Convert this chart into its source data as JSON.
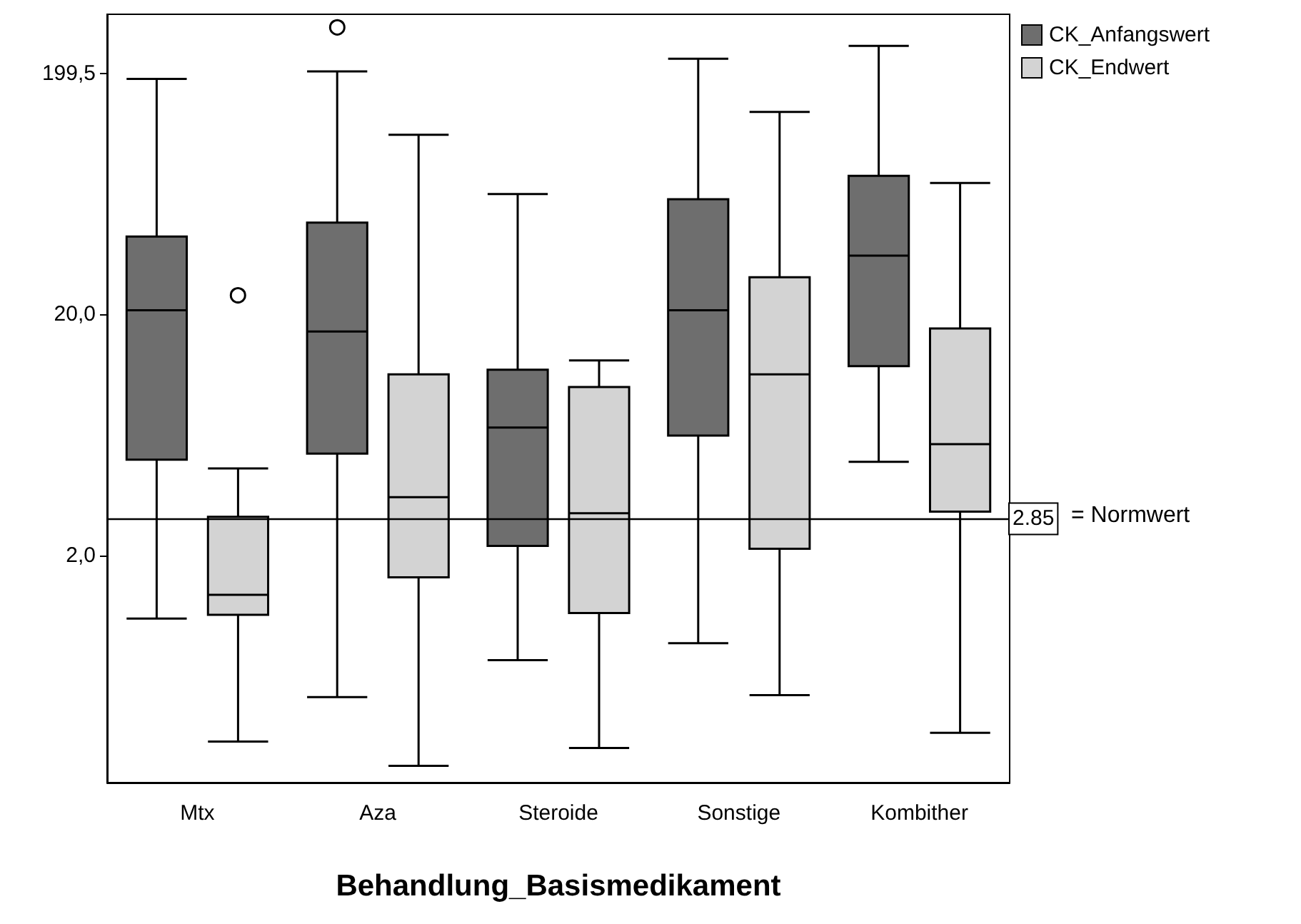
{
  "chart_data": {
    "type": "box",
    "xlabel": "Behandlung_Basismedikament",
    "categories": [
      "Mtx",
      "Aza",
      "Steroide",
      "Sonstige",
      "Kombither"
    ],
    "series": [
      {
        "name": "CK_Anfangswert",
        "color": "#6e6e6e",
        "boxes": [
          {
            "low": 1.1,
            "q1": 5.0,
            "median": 20.8,
            "q3": 42,
            "high": 189
          },
          {
            "low": 0.52,
            "q1": 5.3,
            "median": 17,
            "q3": 48,
            "high": 203,
            "outliers": [
              309
            ]
          },
          {
            "low": 0.74,
            "q1": 2.2,
            "median": 6.8,
            "q3": 11.8,
            "high": 63
          },
          {
            "low": 0.87,
            "q1": 6.3,
            "median": 20.8,
            "q3": 60,
            "high": 229
          },
          {
            "low": 4.9,
            "q1": 12.2,
            "median": 35,
            "q3": 75,
            "high": 259
          }
        ]
      },
      {
        "name": "CK_Endwert",
        "color": "#d3d3d3",
        "boxes": [
          {
            "low": 0.34,
            "q1": 1.14,
            "median": 1.38,
            "q3": 2.9,
            "high": 4.6,
            "outliers": [
              24
            ]
          },
          {
            "low": 0.27,
            "q1": 1.63,
            "median": 3.5,
            "q3": 11.3,
            "high": 111
          },
          {
            "low": 0.32,
            "q1": 1.16,
            "median": 3.0,
            "q3": 10,
            "high": 12.9
          },
          {
            "low": 0.53,
            "q1": 2.14,
            "median": 11.3,
            "q3": 28.5,
            "high": 138
          },
          {
            "low": 0.37,
            "q1": 3.05,
            "median": 5.8,
            "q3": 17.5,
            "high": 70
          }
        ]
      }
    ],
    "log": "y",
    "ylim": [
      0.23,
      350
    ],
    "yticks": [
      {
        "value": 2,
        "label": "2,0"
      },
      {
        "value": 20,
        "label": "20,0"
      },
      {
        "value": 199.5,
        "label": "199,5"
      }
    ],
    "ref_lines": [
      {
        "axis": "y",
        "value": 2.85,
        "label": "2.85"
      }
    ],
    "annotations": [
      "= Normwert"
    ],
    "grid": false,
    "legend": "top right"
  }
}
